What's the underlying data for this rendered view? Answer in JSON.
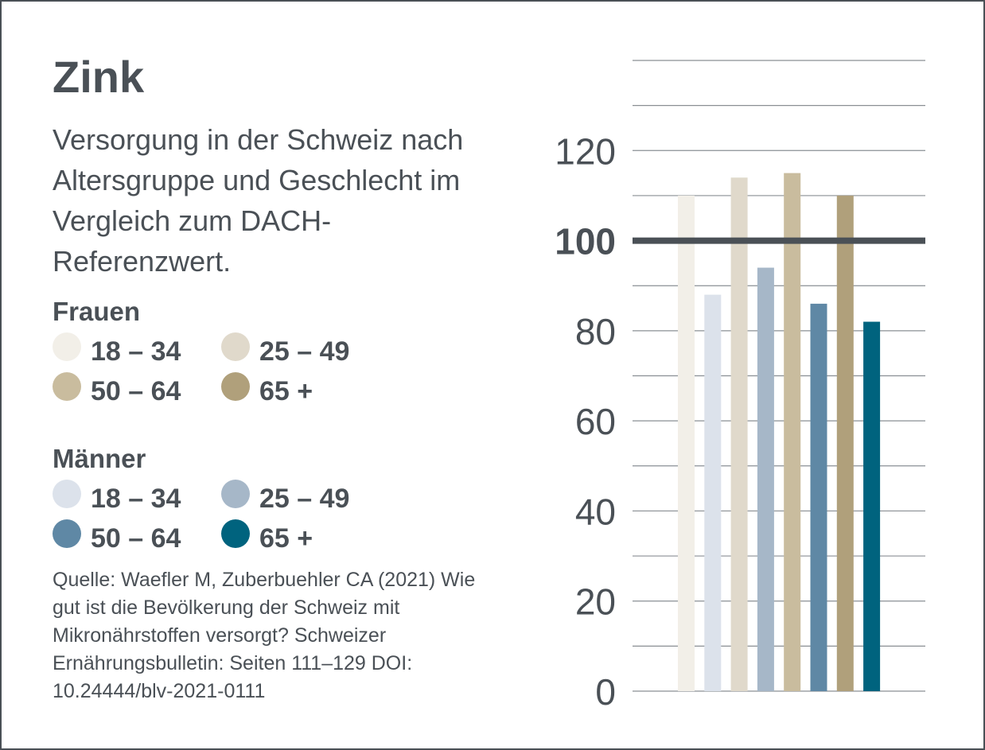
{
  "title": "Zink",
  "subtitle": "Versorgung in der Schweiz nach Altersgruppe und Geschlecht im Vergleich zum DACH-Referenzwert.",
  "legend": {
    "women": {
      "heading": "Frauen",
      "items": [
        {
          "label": "18 – 34",
          "color": "#f2efe8"
        },
        {
          "label": "25 – 49",
          "color": "#e0d9cb"
        },
        {
          "label": "50 – 64",
          "color": "#c9bc9e"
        },
        {
          "label": "65 +",
          "color": "#b0a07b"
        }
      ]
    },
    "men": {
      "heading": "Männer",
      "items": [
        {
          "label": "18 – 34",
          "color": "#dce2eb"
        },
        {
          "label": "25 – 49",
          "color": "#a6b7c8"
        },
        {
          "label": "50 – 64",
          "color": "#5f88a5"
        },
        {
          "label": "65 +",
          "color": "#00637e"
        }
      ]
    }
  },
  "source": "Quelle: Waefler M, Zuberbuehler CA (2021) Wie gut ist die Bevölkerung der Schweiz mit Mikronährstoffen versorgt? Schweizer Ernährungsbulletin: Seiten 111–129 DOI: 10.24444/blv-2021-0111",
  "chart_data": {
    "type": "bar",
    "title": "Zink",
    "categories": [
      "Frauen 18 – 34",
      "Männer 18 – 34",
      "Frauen 25 – 49",
      "Männer 25 – 49",
      "Frauen 50 – 64",
      "Männer 50 – 64",
      "Frauen 65 +",
      "Männer 65 +"
    ],
    "values": [
      110,
      88,
      114,
      94,
      115,
      86,
      110,
      82
    ],
    "colors": [
      "#f2efe8",
      "#dce2eb",
      "#e0d9cb",
      "#a6b7c8",
      "#c9bc9e",
      "#5f88a5",
      "#b0a07b",
      "#00637e"
    ],
    "yticks": [
      0,
      20,
      40,
      60,
      80,
      100,
      120
    ],
    "ylim": [
      0,
      140
    ],
    "grid_step": 10,
    "reference_value": 100,
    "xlabel": "",
    "ylabel": "",
    "grid": true
  }
}
